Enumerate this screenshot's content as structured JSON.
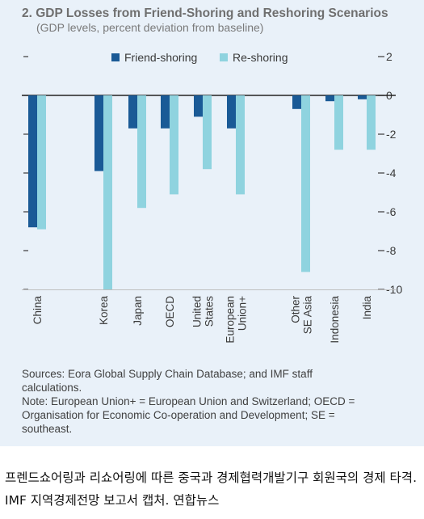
{
  "title": "2. GDP Losses from Friend-Shoring and Reshoring Scenarios",
  "subtitle": "(GDP levels, percent deviation from baseline)",
  "notes": {
    "sources": "Sources: Eora Global Supply Chain Database; and IMF staff\ncalculations.",
    "note": "Note: European Union+ = European Union and Switzerland; OECD =\nOrganisation for Economic Co-operation and Development; SE =\nsoutheast."
  },
  "caption": "프렌드쇼어링과 리쇼어링에 따른 중국과 경제협력개발기구 회원국의 경제 타격.  IMF 지역경제전망 보고서 캡처. 연합뉴스",
  "colors": {
    "card_background": "#e9f1f9",
    "friend_shoring": "#1a5a96",
    "re_shoring": "#8fd3df",
    "axis_text": "#3a3a3a",
    "zero_line": "#222222"
  },
  "chart_data": {
    "type": "bar",
    "title": "2. GDP Losses from Friend-Shoring and Reshoring Scenarios",
    "subtitle": "(GDP levels, percent deviation from baseline)",
    "categories": [
      "China",
      "Korea",
      "Japan",
      "OECD",
      "United States",
      "European Union+",
      "Other SE Asia",
      "Indonesia",
      "India"
    ],
    "category_labels": [
      [
        "China"
      ],
      [
        "Korea"
      ],
      [
        "Japan"
      ],
      [
        "OECD"
      ],
      [
        "United",
        "States"
      ],
      [
        "European",
        "Union+"
      ],
      [
        "Other",
        "SE Asia"
      ],
      [
        "Indonesia"
      ],
      [
        "India"
      ]
    ],
    "series": [
      {
        "name": "Friend-shoring",
        "values": [
          -6.8,
          -3.9,
          -1.7,
          -1.7,
          -1.1,
          -1.7,
          -0.7,
          -0.3,
          -0.2
        ]
      },
      {
        "name": "Re-shoring",
        "values": [
          -6.9,
          -10.0,
          -5.8,
          -5.1,
          -3.8,
          -5.1,
          -9.1,
          -2.8,
          -2.8
        ]
      }
    ],
    "ylim": [
      -10,
      2
    ],
    "yticks": [
      2,
      0,
      -2,
      -4,
      -6,
      -8,
      -10
    ],
    "ytick_labels": [
      "2",
      "0",
      "-2",
      "-4",
      "-6",
      "-8",
      "-10"
    ],
    "y_axis_side": "right",
    "grid": false,
    "legend_position": "top"
  }
}
